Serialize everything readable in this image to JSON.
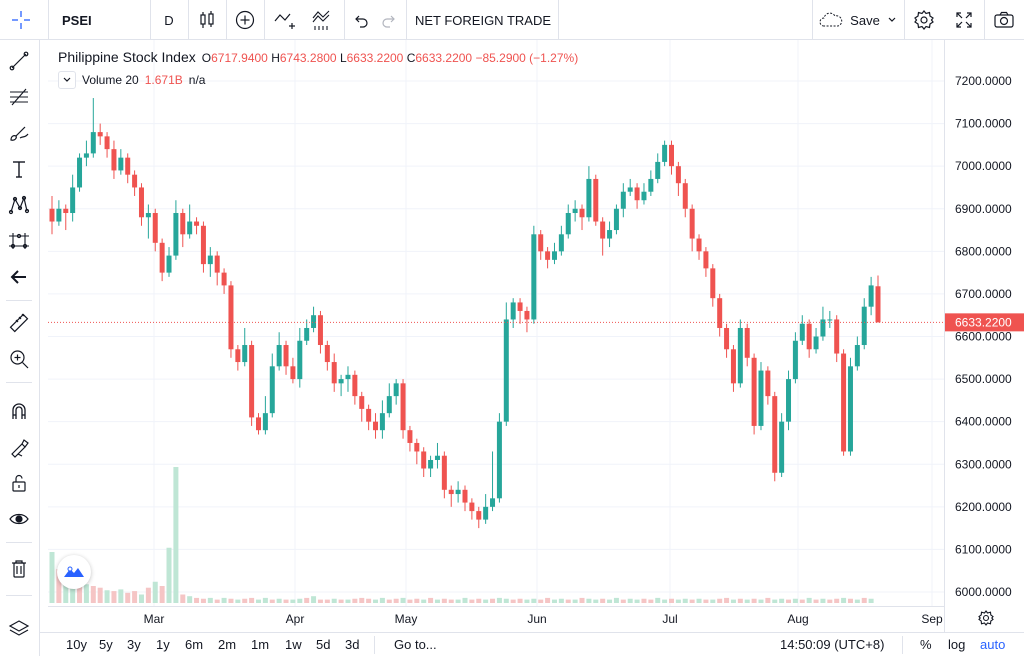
{
  "toolbar": {
    "symbol": "PSEI",
    "interval": "D",
    "indicator_label": "NET FOREIGN TRADE",
    "save_label": "Save"
  },
  "legend": {
    "title": "Philippine Stock Index",
    "open_key": "O",
    "open": "6717.9400",
    "high_key": "H",
    "high": "6743.2800",
    "low_key": "L",
    "low": "6633.2200",
    "close_key": "C",
    "close": "6633.2200",
    "change": "−85.2900 (−1.27%)",
    "volume_label": "Volume 20",
    "volume_value": "1.671B",
    "volume_ma": "n/a"
  },
  "price_axis": {
    "labels": [
      "7200.0000",
      "7100.0000",
      "7000.0000",
      "6900.0000",
      "6800.0000",
      "6700.0000",
      "6600.0000",
      "6500.0000",
      "6400.0000",
      "6300.0000",
      "6200.0000",
      "6100.0000",
      "6000.0000"
    ],
    "last_price": "6633.2200"
  },
  "time_axis": {
    "labels": [
      "Mar",
      "Apr",
      "May",
      "Jun",
      "Jul",
      "Aug",
      "Sep"
    ]
  },
  "bottom": {
    "ranges": [
      "10y",
      "5y",
      "3y",
      "1y",
      "6m",
      "2m",
      "1m",
      "1w",
      "5d",
      "3d"
    ],
    "goto": "Go to...",
    "clock": "14:50:09 (UTC+8)",
    "percent": "%",
    "log": "log",
    "auto": "auto"
  },
  "colors": {
    "up": "#26a69a",
    "down": "#ef5350",
    "accent": "#2962ff",
    "volume_up": "#bfe6d5",
    "volume_down": "#f5c5c5"
  },
  "icons": {
    "left_tools": [
      "crosshair-icon",
      "trend-line-icon",
      "fib-retracement-icon",
      "brush-icon",
      "text-icon",
      "pattern-icon",
      "prediction-icon",
      "back-arrow-icon",
      "ruler-icon",
      "zoom-in-icon",
      "magnet-icon",
      "lock-drawings-icon",
      "unlock-icon",
      "eye-icon",
      "trash-icon"
    ]
  },
  "chart_data": {
    "type": "candlestick",
    "title": "Philippine Stock Index",
    "ylim": [
      5980,
      7250
    ],
    "y_ticks": [
      6000,
      6100,
      6200,
      6300,
      6400,
      6500,
      6600,
      6700,
      6800,
      6900,
      7000,
      7100,
      7200
    ],
    "x_ticks": [
      "Mar",
      "Apr",
      "May",
      "Jun",
      "Jul",
      "Aug",
      "Sep"
    ],
    "last_price": 6633.22,
    "candles": [
      [
        6900,
        6870,
        6930,
        6840
      ],
      [
        6870,
        6900,
        6920,
        6860
      ],
      [
        6900,
        6890,
        6910,
        6850
      ],
      [
        6890,
        6950,
        6980,
        6870
      ],
      [
        6950,
        7020,
        7030,
        6940
      ],
      [
        7020,
        7030,
        7060,
        7000
      ],
      [
        7030,
        7080,
        7160,
        7020
      ],
      [
        7080,
        7070,
        7100,
        7050
      ],
      [
        7070,
        7040,
        7080,
        7020
      ],
      [
        7040,
        6990,
        7060,
        6970
      ],
      [
        6990,
        7020,
        7040,
        6980
      ],
      [
        7020,
        6980,
        7030,
        6960
      ],
      [
        6980,
        6950,
        6990,
        6930
      ],
      [
        6950,
        6880,
        6960,
        6860
      ],
      [
        6880,
        6890,
        6910,
        6830
      ],
      [
        6890,
        6820,
        6900,
        6800
      ],
      [
        6820,
        6750,
        6830,
        6730
      ],
      [
        6750,
        6790,
        6810,
        6740
      ],
      [
        6790,
        6890,
        6920,
        6780
      ],
      [
        6890,
        6840,
        6900,
        6810
      ],
      [
        6840,
        6870,
        6910,
        6830
      ],
      [
        6870,
        6860,
        6880,
        6840
      ],
      [
        6860,
        6770,
        6870,
        6750
      ],
      [
        6770,
        6790,
        6810,
        6740
      ],
      [
        6790,
        6750,
        6800,
        6720
      ],
      [
        6750,
        6720,
        6760,
        6700
      ],
      [
        6720,
        6570,
        6730,
        6550
      ],
      [
        6570,
        6540,
        6580,
        6520
      ],
      [
        6540,
        6580,
        6620,
        6530
      ],
      [
        6580,
        6410,
        6590,
        6390
      ],
      [
        6410,
        6380,
        6420,
        6370
      ],
      [
        6380,
        6420,
        6460,
        6370
      ],
      [
        6420,
        6530,
        6560,
        6410
      ],
      [
        6530,
        6580,
        6610,
        6520
      ],
      [
        6580,
        6530,
        6590,
        6510
      ],
      [
        6530,
        6500,
        6550,
        6490
      ],
      [
        6500,
        6590,
        6620,
        6480
      ],
      [
        6590,
        6620,
        6640,
        6580
      ],
      [
        6620,
        6650,
        6670,
        6610
      ],
      [
        6650,
        6580,
        6660,
        6560
      ],
      [
        6580,
        6540,
        6590,
        6520
      ],
      [
        6540,
        6490,
        6560,
        6470
      ],
      [
        6490,
        6500,
        6510,
        6460
      ],
      [
        6500,
        6510,
        6530,
        6470
      ],
      [
        6510,
        6460,
        6520,
        6440
      ],
      [
        6460,
        6430,
        6470,
        6400
      ],
      [
        6430,
        6400,
        6440,
        6380
      ],
      [
        6400,
        6380,
        6420,
        6360
      ],
      [
        6380,
        6420,
        6450,
        6360
      ],
      [
        6420,
        6460,
        6490,
        6410
      ],
      [
        6460,
        6490,
        6500,
        6440
      ],
      [
        6490,
        6380,
        6500,
        6360
      ],
      [
        6380,
        6350,
        6390,
        6330
      ],
      [
        6350,
        6330,
        6360,
        6300
      ],
      [
        6330,
        6290,
        6340,
        6270
      ],
      [
        6290,
        6310,
        6320,
        6270
      ],
      [
        6310,
        6320,
        6350,
        6290
      ],
      [
        6320,
        6240,
        6330,
        6220
      ],
      [
        6240,
        6230,
        6250,
        6200
      ],
      [
        6230,
        6240,
        6260,
        6210
      ],
      [
        6240,
        6210,
        6250,
        6190
      ],
      [
        6210,
        6190,
        6220,
        6170
      ],
      [
        6190,
        6170,
        6200,
        6150
      ],
      [
        6170,
        6200,
        6230,
        6160
      ],
      [
        6200,
        6220,
        6330,
        6190
      ],
      [
        6220,
        6400,
        6420,
        6210
      ],
      [
        6400,
        6640,
        6680,
        6390
      ],
      [
        6640,
        6680,
        6690,
        6620
      ],
      [
        6680,
        6660,
        6690,
        6630
      ],
      [
        6660,
        6640,
        6670,
        6610
      ],
      [
        6640,
        6840,
        6860,
        6630
      ],
      [
        6840,
        6800,
        6850,
        6780
      ],
      [
        6800,
        6780,
        6810,
        6760
      ],
      [
        6780,
        6800,
        6820,
        6770
      ],
      [
        6800,
        6840,
        6860,
        6790
      ],
      [
        6840,
        6890,
        6910,
        6830
      ],
      [
        6890,
        6900,
        6920,
        6870
      ],
      [
        6900,
        6880,
        6910,
        6850
      ],
      [
        6880,
        6970,
        7000,
        6870
      ],
      [
        6970,
        6870,
        6980,
        6860
      ],
      [
        6870,
        6830,
        6880,
        6790
      ],
      [
        6830,
        6850,
        6870,
        6810
      ],
      [
        6850,
        6900,
        6910,
        6840
      ],
      [
        6900,
        6940,
        6960,
        6880
      ],
      [
        6940,
        6950,
        6970,
        6930
      ],
      [
        6950,
        6920,
        6960,
        6900
      ],
      [
        6920,
        6940,
        6960,
        6910
      ],
      [
        6940,
        6970,
        6990,
        6930
      ],
      [
        6970,
        7010,
        7030,
        6960
      ],
      [
        7010,
        7050,
        7060,
        7000
      ],
      [
        7050,
        7000,
        7060,
        6980
      ],
      [
        7000,
        6960,
        7010,
        6930
      ],
      [
        6960,
        6900,
        6970,
        6880
      ],
      [
        6900,
        6830,
        6910,
        6800
      ],
      [
        6830,
        6800,
        6840,
        6780
      ],
      [
        6800,
        6760,
        6810,
        6740
      ],
      [
        6760,
        6690,
        6770,
        6670
      ],
      [
        6690,
        6620,
        6700,
        6600
      ],
      [
        6620,
        6570,
        6630,
        6550
      ],
      [
        6570,
        6490,
        6580,
        6470
      ],
      [
        6490,
        6620,
        6640,
        6480
      ],
      [
        6620,
        6550,
        6630,
        6530
      ],
      [
        6550,
        6390,
        6560,
        6370
      ],
      [
        6390,
        6520,
        6540,
        6380
      ],
      [
        6520,
        6460,
        6530,
        6440
      ],
      [
        6460,
        6280,
        6470,
        6260
      ],
      [
        6280,
        6400,
        6420,
        6270
      ],
      [
        6400,
        6500,
        6520,
        6380
      ],
      [
        6500,
        6590,
        6610,
        6490
      ],
      [
        6590,
        6630,
        6650,
        6580
      ],
      [
        6630,
        6570,
        6640,
        6550
      ],
      [
        6570,
        6600,
        6620,
        6560
      ],
      [
        6600,
        6640,
        6670,
        6590
      ],
      [
        6640,
        6640,
        6660,
        6620
      ],
      [
        6640,
        6560,
        6650,
        6540
      ],
      [
        6560,
        6330,
        6570,
        6320
      ],
      [
        6330,
        6530,
        6550,
        6320
      ],
      [
        6530,
        6580,
        6600,
        6520
      ],
      [
        6580,
        6670,
        6690,
        6570
      ],
      [
        6670,
        6720,
        6740,
        6650
      ],
      [
        6717.94,
        6633.22,
        6743.28,
        6633.22
      ]
    ],
    "volume": [
      [
        60,
        "up"
      ],
      [
        40,
        "down"
      ],
      [
        35,
        "up"
      ],
      [
        30,
        "up"
      ],
      [
        25,
        "down"
      ],
      [
        22,
        "up"
      ],
      [
        20,
        "down"
      ],
      [
        18,
        "down"
      ],
      [
        15,
        "up"
      ],
      [
        14,
        "down"
      ],
      [
        16,
        "up"
      ],
      [
        12,
        "down"
      ],
      [
        14,
        "down"
      ],
      [
        10,
        "up"
      ],
      [
        18,
        "down"
      ],
      [
        25,
        "up"
      ],
      [
        20,
        "down"
      ],
      [
        65,
        "up"
      ],
      [
        160,
        "up"
      ],
      [
        10,
        "down"
      ],
      [
        8,
        "up"
      ],
      [
        6,
        "down"
      ],
      [
        5,
        "down"
      ],
      [
        6,
        "up"
      ],
      [
        4,
        "down"
      ],
      [
        6,
        "up"
      ],
      [
        5,
        "down"
      ],
      [
        4,
        "up"
      ],
      [
        5,
        "down"
      ],
      [
        6,
        "down"
      ],
      [
        4,
        "up"
      ],
      [
        6,
        "up"
      ],
      [
        4,
        "down"
      ],
      [
        5,
        "up"
      ],
      [
        4,
        "down"
      ],
      [
        4,
        "up"
      ],
      [
        5,
        "up"
      ],
      [
        6,
        "down"
      ],
      [
        8,
        "up"
      ],
      [
        4,
        "down"
      ],
      [
        4,
        "down"
      ],
      [
        5,
        "up"
      ],
      [
        4,
        "down"
      ],
      [
        4,
        "up"
      ],
      [
        5,
        "down"
      ],
      [
        6,
        "down"
      ],
      [
        5,
        "down"
      ],
      [
        4,
        "up"
      ],
      [
        6,
        "up"
      ],
      [
        4,
        "down"
      ],
      [
        5,
        "down"
      ],
      [
        6,
        "up"
      ],
      [
        4,
        "down"
      ],
      [
        5,
        "down"
      ],
      [
        4,
        "up"
      ],
      [
        6,
        "down"
      ],
      [
        4,
        "up"
      ],
      [
        5,
        "down"
      ],
      [
        4,
        "down"
      ],
      [
        4,
        "up"
      ],
      [
        6,
        "up"
      ],
      [
        4,
        "down"
      ],
      [
        5,
        "down"
      ],
      [
        4,
        "up"
      ],
      [
        5,
        "down"
      ],
      [
        6,
        "up"
      ],
      [
        5,
        "up"
      ],
      [
        4,
        "down"
      ],
      [
        5,
        "down"
      ],
      [
        4,
        "up"
      ],
      [
        5,
        "up"
      ],
      [
        4,
        "down"
      ],
      [
        6,
        "down"
      ],
      [
        4,
        "up"
      ],
      [
        5,
        "up"
      ],
      [
        4,
        "down"
      ],
      [
        4,
        "up"
      ],
      [
        6,
        "down"
      ],
      [
        5,
        "up"
      ],
      [
        4,
        "up"
      ],
      [
        5,
        "down"
      ],
      [
        4,
        "up"
      ],
      [
        6,
        "up"
      ],
      [
        4,
        "down"
      ],
      [
        5,
        "up"
      ],
      [
        4,
        "up"
      ],
      [
        5,
        "down"
      ],
      [
        4,
        "down"
      ],
      [
        6,
        "up"
      ],
      [
        4,
        "up"
      ],
      [
        5,
        "down"
      ],
      [
        4,
        "up"
      ],
      [
        5,
        "up"
      ],
      [
        4,
        "down"
      ],
      [
        5,
        "up"
      ],
      [
        4,
        "down"
      ],
      [
        4,
        "up"
      ],
      [
        5,
        "down"
      ],
      [
        6,
        "down"
      ],
      [
        4,
        "up"
      ],
      [
        5,
        "down"
      ],
      [
        4,
        "up"
      ],
      [
        5,
        "down"
      ],
      [
        4,
        "up"
      ],
      [
        6,
        "down"
      ],
      [
        4,
        "up"
      ],
      [
        5,
        "up"
      ],
      [
        4,
        "down"
      ],
      [
        5,
        "up"
      ],
      [
        4,
        "down"
      ],
      [
        6,
        "up"
      ],
      [
        4,
        "down"
      ],
      [
        5,
        "up"
      ],
      [
        4,
        "down"
      ],
      [
        5,
        "down"
      ],
      [
        6,
        "up"
      ],
      [
        5,
        "down"
      ],
      [
        4,
        "up"
      ],
      [
        6,
        "down"
      ],
      [
        5,
        "up"
      ]
    ]
  }
}
